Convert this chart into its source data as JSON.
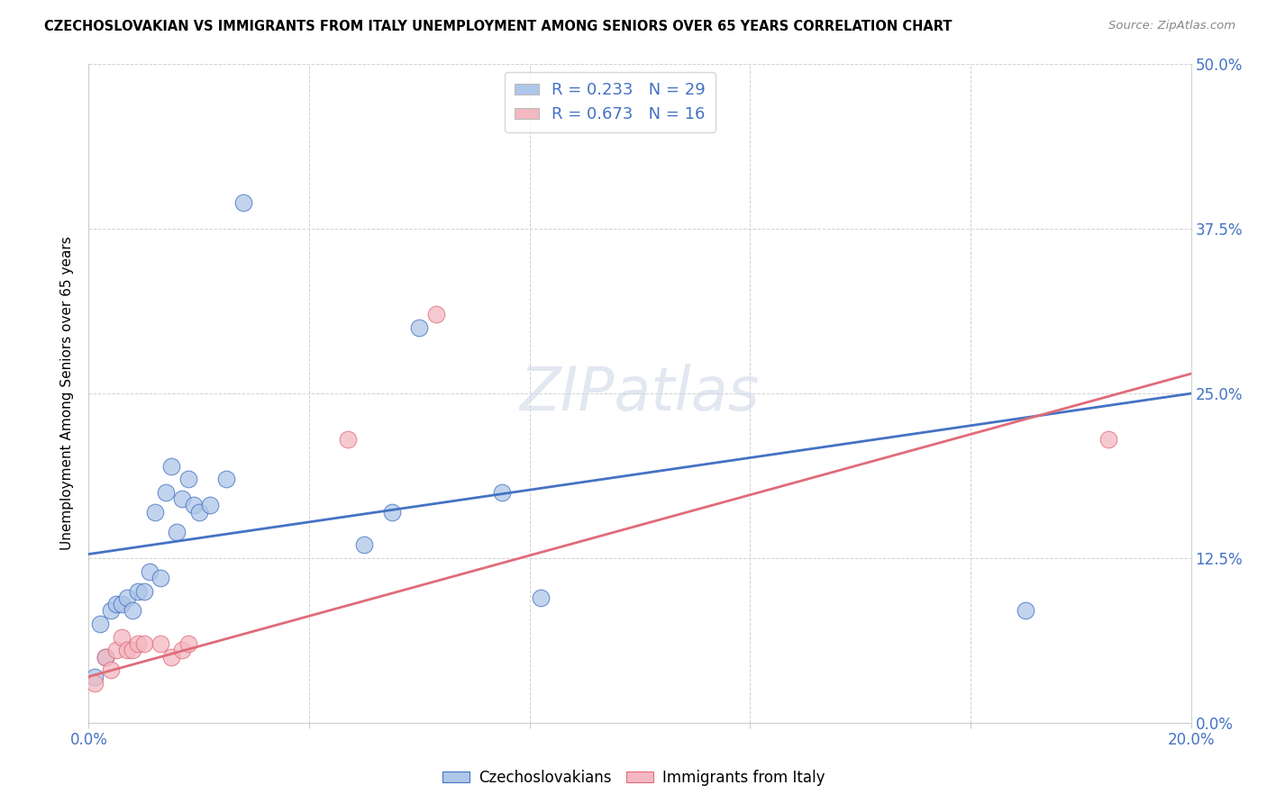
{
  "title": "CZECHOSLOVAKIAN VS IMMIGRANTS FROM ITALY UNEMPLOYMENT AMONG SENIORS OVER 65 YEARS CORRELATION CHART",
  "source": "Source: ZipAtlas.com",
  "ylabel": "Unemployment Among Seniors over 65 years",
  "xlim": [
    0.0,
    0.2
  ],
  "ylim": [
    0.0,
    0.5
  ],
  "xticks": [
    0.0,
    0.04,
    0.08,
    0.12,
    0.16,
    0.2
  ],
  "xtick_labels": [
    "0.0%",
    "",
    "",
    "",
    "",
    "20.0%"
  ],
  "ytick_vals": [
    0.0,
    0.125,
    0.25,
    0.375,
    0.5
  ],
  "ytick_labels_right": [
    "0.0%",
    "12.5%",
    "25.0%",
    "37.5%",
    "50.0%"
  ],
  "legend_entries": [
    {
      "label": "R = 0.233   N = 29",
      "color": "#aec6e8"
    },
    {
      "label": "R = 0.673   N = 16",
      "color": "#f4b8c1"
    }
  ],
  "bottom_legend": [
    "Czechoslovakians",
    "Immigrants from Italy"
  ],
  "blue_color": "#4472C4",
  "pink_color": "#E06C7A",
  "scatter_blue_color": "#aec6e8",
  "scatter_pink_color": "#f4b8c1",
  "watermark_text": "ZIPatlas",
  "czechoslovakians_x": [
    0.001,
    0.002,
    0.003,
    0.004,
    0.005,
    0.006,
    0.007,
    0.008,
    0.009,
    0.01,
    0.011,
    0.012,
    0.013,
    0.014,
    0.015,
    0.016,
    0.017,
    0.018,
    0.019,
    0.02,
    0.022,
    0.025,
    0.028,
    0.05,
    0.055,
    0.06,
    0.075,
    0.082,
    0.17
  ],
  "czechoslovakians_y": [
    0.035,
    0.075,
    0.05,
    0.085,
    0.09,
    0.09,
    0.095,
    0.085,
    0.1,
    0.1,
    0.115,
    0.16,
    0.11,
    0.175,
    0.195,
    0.145,
    0.17,
    0.185,
    0.165,
    0.16,
    0.165,
    0.185,
    0.395,
    0.135,
    0.16,
    0.3,
    0.175,
    0.095,
    0.085
  ],
  "italy_x": [
    0.001,
    0.003,
    0.004,
    0.005,
    0.006,
    0.007,
    0.008,
    0.009,
    0.01,
    0.013,
    0.015,
    0.017,
    0.018,
    0.047,
    0.063,
    0.185
  ],
  "italy_y": [
    0.03,
    0.05,
    0.04,
    0.055,
    0.065,
    0.055,
    0.055,
    0.06,
    0.06,
    0.06,
    0.05,
    0.055,
    0.06,
    0.215,
    0.31,
    0.215
  ],
  "blue_line_x": [
    0.0,
    0.2
  ],
  "blue_line_y": [
    0.128,
    0.25
  ],
  "pink_line_x": [
    0.0,
    0.2
  ],
  "pink_line_y": [
    0.035,
    0.265
  ]
}
